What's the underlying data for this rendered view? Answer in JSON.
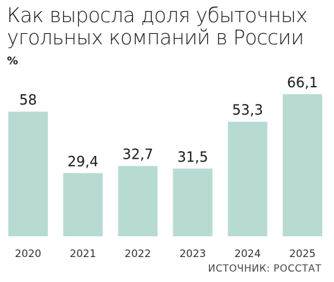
{
  "chart_data": {
    "type": "bar",
    "title_lines": [
      "Как выросла доля убыточных",
      "угольных компаний в России"
    ],
    "unit": "%",
    "categories": [
      "2020",
      "2021",
      "2022",
      "2023",
      "2024",
      "2025"
    ],
    "values": [
      58,
      29.4,
      32.7,
      31.5,
      53.3,
      66.1
    ],
    "value_labels": [
      "58",
      "29,4",
      "32,7",
      "31,5",
      "53,3",
      "66,1"
    ],
    "ylim": [
      0,
      66.1
    ],
    "bar_color": "#b7dbd3",
    "grid": false,
    "source": "ИСТОЧНИК: РОССТАТ"
  }
}
